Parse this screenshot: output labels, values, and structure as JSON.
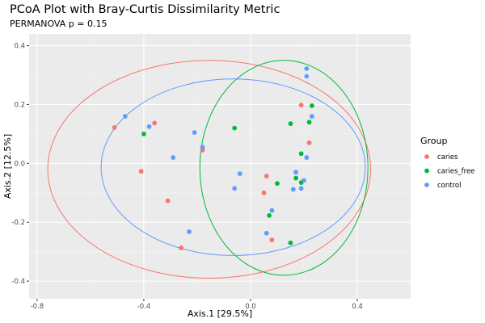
{
  "chart_data": {
    "type": "scatter",
    "title": "PCoA Plot with Bray-Curtis Dissimilarity Metric",
    "subtitle": "PERMANOVA p = 0.15",
    "xlabel": "Axis.1   [29.5%]",
    "ylabel": "Axis.2   [12.5%]",
    "xlim": [
      -0.83,
      0.6
    ],
    "ylim": [
      -0.46,
      0.44
    ],
    "x_ticks": [
      -0.8,
      -0.4,
      0.0,
      0.4
    ],
    "x_tick_labels": [
      "-0.8",
      "-0.4",
      "0.0",
      "0.4"
    ],
    "y_ticks": [
      -0.4,
      -0.2,
      0.0,
      0.2,
      0.4
    ],
    "y_tick_labels": [
      "-0.4",
      "-0.2",
      "0.0",
      "0.2",
      "0.4"
    ],
    "grid": true,
    "legend": {
      "title": "Group",
      "placement": "right"
    },
    "series": [
      {
        "name": "caries",
        "color": "#F8766D",
        "points": [
          [
            -0.51,
            0.122
          ],
          [
            -0.36,
            0.137
          ],
          [
            -0.41,
            -0.027
          ],
          [
            -0.31,
            -0.127
          ],
          [
            -0.26,
            -0.287
          ],
          [
            -0.18,
            0.045
          ],
          [
            0.06,
            -0.043
          ],
          [
            0.05,
            -0.1
          ],
          [
            0.08,
            -0.26
          ],
          [
            0.19,
            0.198
          ],
          [
            0.22,
            0.07
          ]
        ],
        "ellipse": {
          "center": [
            -0.155,
            -0.02
          ],
          "semi_axes": [
            0.605,
            0.37
          ]
        }
      },
      {
        "name": "caries_free",
        "color": "#00BA38",
        "points": [
          [
            -0.4,
            0.1
          ],
          [
            -0.06,
            0.12
          ],
          [
            0.15,
            0.135
          ],
          [
            0.22,
            0.14
          ],
          [
            0.23,
            0.196
          ],
          [
            0.19,
            0.033
          ],
          [
            0.1,
            -0.068
          ],
          [
            0.17,
            -0.05
          ],
          [
            0.19,
            -0.065
          ],
          [
            0.07,
            -0.177
          ],
          [
            0.15,
            -0.27
          ]
        ],
        "ellipse": {
          "center": [
            0.125,
            -0.015
          ],
          "semi_axes": [
            0.315,
            0.365
          ]
        }
      },
      {
        "name": "control",
        "color": "#619CFF",
        "points": [
          [
            -0.47,
            0.16
          ],
          [
            -0.38,
            0.125
          ],
          [
            -0.21,
            0.105
          ],
          [
            -0.18,
            0.055
          ],
          [
            -0.29,
            0.02
          ],
          [
            -0.04,
            -0.035
          ],
          [
            -0.06,
            -0.085
          ],
          [
            0.21,
            0.322
          ],
          [
            0.21,
            0.296
          ],
          [
            0.23,
            0.16
          ],
          [
            0.21,
            0.02
          ],
          [
            0.17,
            -0.03
          ],
          [
            0.2,
            -0.058
          ],
          [
            0.16,
            -0.088
          ],
          [
            0.19,
            -0.085
          ],
          [
            0.08,
            -0.16
          ],
          [
            0.06,
            -0.237
          ],
          [
            -0.23,
            -0.232
          ]
        ],
        "ellipse": {
          "center": [
            -0.065,
            -0.013
          ],
          "semi_axes": [
            0.495,
            0.3
          ]
        }
      }
    ]
  }
}
